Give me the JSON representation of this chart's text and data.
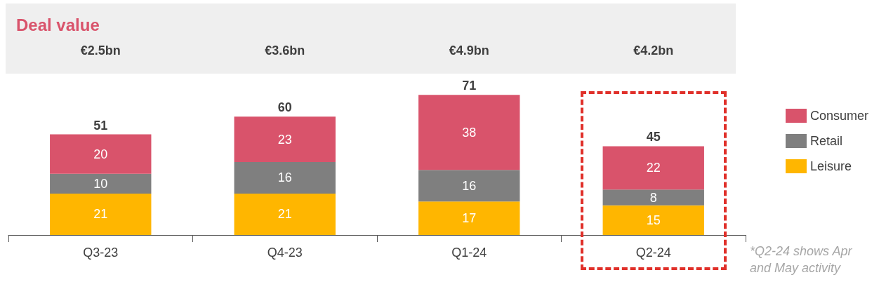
{
  "chart_data": {
    "type": "bar",
    "title": "Deal value",
    "stacked": true,
    "data_labels": true,
    "legend": "right",
    "grid": false,
    "categories": [
      "Q3-23",
      "Q4-23",
      "Q1-24",
      "Q2-24"
    ],
    "series": [
      {
        "name": "Leisure",
        "color": "#ffb600",
        "values": [
          21,
          21,
          17,
          15
        ]
      },
      {
        "name": "Retail",
        "color": "#7f7f7f",
        "values": [
          10,
          16,
          16,
          8
        ]
      },
      {
        "name": "Consumer",
        "color": "#d9536b",
        "values": [
          20,
          23,
          38,
          22
        ]
      }
    ],
    "totals": [
      "51",
      "60",
      "71",
      "45"
    ],
    "annotations": [
      "€2.5bn",
      "€3.6bn",
      "€4.9bn",
      "€4.2bn",
      "*Q2-24 shows Apr and May activity"
    ]
  }
}
